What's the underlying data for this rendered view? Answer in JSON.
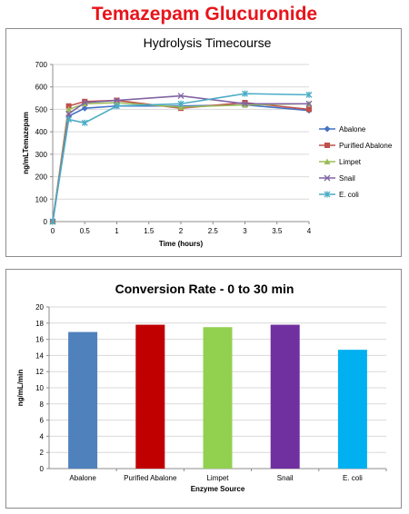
{
  "page": {
    "title": "Temazepam Glucuronide"
  },
  "colors": {
    "title_red": "#e8141b",
    "axis": "#8c8c8c",
    "grid": "#d9d9d9"
  },
  "chart_data": [
    {
      "type": "line",
      "title": "Hydrolysis Timecourse",
      "xlabel": "Time (hours)",
      "ylabel": "ng/mLTemazepam",
      "xlim": [
        0,
        4
      ],
      "ylim": [
        0,
        700
      ],
      "xticks": [
        0,
        0.5,
        1,
        1.5,
        2,
        2.5,
        3,
        3.5,
        4
      ],
      "xtick_labels": [
        "0",
        "0.5",
        "1",
        "1.5",
        "2",
        "2.5",
        "3",
        "3.5",
        "4"
      ],
      "yticks": [
        0,
        100,
        200,
        300,
        400,
        500,
        600,
        700
      ],
      "ytick_labels": [
        "0",
        "100",
        "200",
        "300",
        "400",
        "500",
        "600",
        "700"
      ],
      "grid": "horizontal",
      "legend": "right",
      "series": [
        {
          "name": "Abalone",
          "color": "#4472c4",
          "marker": "diamond",
          "x": [
            0,
            0.25,
            0.5,
            1,
            2,
            3,
            4
          ],
          "y": [
            0,
            470,
            505,
            515,
            515,
            520,
            495
          ]
        },
        {
          "name": "Purified Abalone",
          "color": "#c0504d",
          "marker": "square",
          "x": [
            0,
            0.25,
            0.5,
            1,
            2,
            3,
            4
          ],
          "y": [
            0,
            515,
            535,
            540,
            505,
            530,
            500
          ]
        },
        {
          "name": "Limpet",
          "color": "#9bbb59",
          "marker": "triangle",
          "x": [
            0,
            0.25,
            0.5,
            1,
            2,
            3,
            4
          ],
          "y": [
            0,
            500,
            525,
            530,
            510,
            520,
            525
          ]
        },
        {
          "name": "Snail",
          "color": "#8064a2",
          "marker": "x",
          "x": [
            0,
            0.25,
            0.5,
            1,
            2,
            3,
            4
          ],
          "y": [
            0,
            480,
            530,
            540,
            560,
            525,
            525
          ]
        },
        {
          "name": "E. coli",
          "color": "#4bacc6",
          "marker": "star",
          "x": [
            0,
            0.25,
            0.5,
            1,
            2,
            3,
            4
          ],
          "y": [
            0,
            455,
            440,
            515,
            525,
            570,
            565
          ]
        }
      ]
    },
    {
      "type": "bar",
      "title": "Conversion Rate - 0 to 30 min",
      "xlabel": "Enzyme Source",
      "ylabel": "ng/mL/min",
      "ylim": [
        0,
        20
      ],
      "yticks": [
        0,
        2,
        4,
        6,
        8,
        10,
        12,
        14,
        16,
        18,
        20
      ],
      "ytick_labels": [
        "0",
        "2",
        "4",
        "6",
        "8",
        "10",
        "12",
        "14",
        "16",
        "18",
        "20"
      ],
      "grid": "horizontal",
      "categories": [
        "Abalone",
        "Purified Abalone",
        "Limpet",
        "Snail",
        "E. coli"
      ],
      "values": [
        16.9,
        17.8,
        17.5,
        17.8,
        14.7
      ],
      "colors": [
        "#4f81bd",
        "#c00000",
        "#92d050",
        "#7030a0",
        "#00b0f0"
      ]
    }
  ]
}
